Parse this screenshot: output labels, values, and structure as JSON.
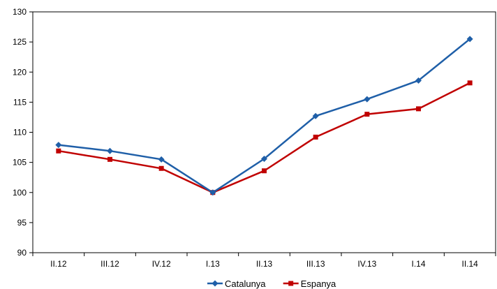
{
  "chart_data": {
    "type": "line",
    "title": "",
    "xlabel": "",
    "ylabel": "",
    "categories": [
      "II.12",
      "III.12",
      "IV.12",
      "I.13",
      "II.13",
      "III.13",
      "IV.13",
      "I.14",
      "II.14"
    ],
    "ylim": [
      90,
      130
    ],
    "yticks": [
      90,
      95,
      100,
      105,
      110,
      115,
      120,
      125,
      130
    ],
    "grid": false,
    "legend_position": "bottom",
    "series": [
      {
        "name": "Catalunya",
        "color": "#1f5fa8",
        "marker": "diamond",
        "values": [
          107.9,
          106.9,
          105.5,
          100.0,
          105.6,
          112.7,
          115.5,
          118.6,
          125.5
        ]
      },
      {
        "name": "Espanya",
        "color": "#c00000",
        "marker": "square",
        "values": [
          106.9,
          105.5,
          104.0,
          100.0,
          103.6,
          109.2,
          113.0,
          113.9,
          118.2
        ]
      }
    ]
  }
}
